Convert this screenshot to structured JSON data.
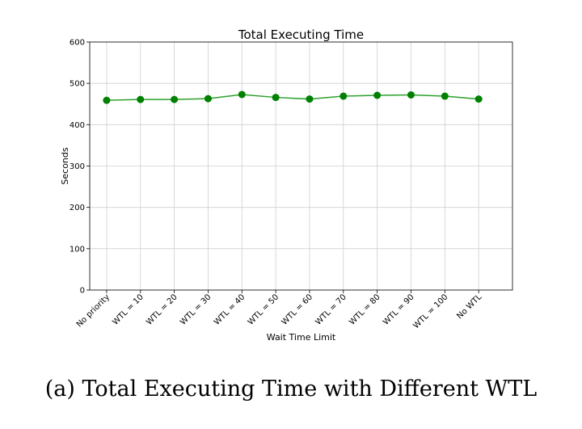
{
  "caption": "(a) Total Executing Time with Different WTL",
  "chart_data": {
    "type": "line",
    "title": "Total Executing Time",
    "xlabel": "Wait Time Limit",
    "ylabel": "Seconds",
    "ylim": [
      0,
      600
    ],
    "yticks": [
      0,
      100,
      200,
      300,
      400,
      500,
      600
    ],
    "grid": true,
    "categories": [
      "No priority",
      "WTL = 10",
      "WTL = 20",
      "WTL = 30",
      "WTL = 40",
      "WTL = 50",
      "WTL = 60",
      "WTL = 70",
      "WTL = 80",
      "WTL = 90",
      "WTL = 100",
      "No WTL"
    ],
    "series": [
      {
        "values": [
          459,
          461,
          461,
          463,
          473,
          466,
          462,
          469,
          471,
          472,
          469,
          462
        ],
        "color": "#2ca02c",
        "marker_color": "#008000"
      }
    ]
  }
}
